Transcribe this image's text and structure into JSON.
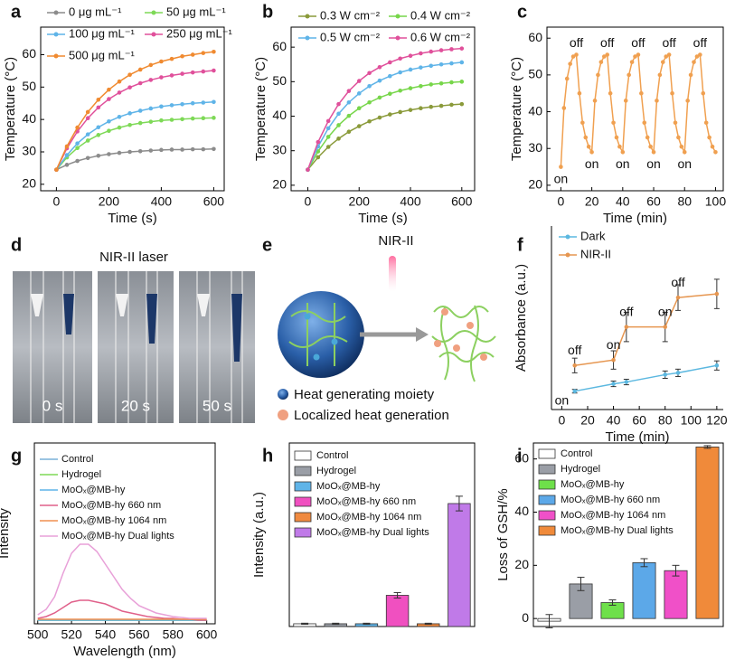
{
  "chart_data": [
    {
      "type": "line",
      "panel": "a",
      "xlabel": "Time (s)",
      "ylabel": "Temperature (°C)",
      "markers": true,
      "x": [
        0,
        40,
        80,
        120,
        160,
        200,
        240,
        280,
        320,
        360,
        400,
        440,
        480,
        520,
        560,
        600
      ],
      "xlim": [
        -60,
        640
      ],
      "xticks": [
        0,
        200,
        400,
        600
      ],
      "ylim": [
        18,
        68.5
      ],
      "yticks": [
        20,
        30,
        40,
        50,
        60
      ],
      "series": [
        {
          "name": "0 μg mL⁻¹",
          "color": "#8c8c8c",
          "values": [
            24.5,
            26.0,
            27.2,
            28.1,
            28.8,
            29.3,
            29.7,
            30.0,
            30.2,
            30.4,
            30.6,
            30.7,
            30.7,
            30.8,
            30.8,
            30.9
          ]
        },
        {
          "name": "50 μg mL⁻¹",
          "color": "#7ed957",
          "values": [
            24.5,
            28.3,
            31.2,
            33.5,
            35.2,
            36.5,
            37.5,
            38.3,
            38.9,
            39.3,
            39.7,
            39.9,
            40.1,
            40.3,
            40.4,
            40.5
          ]
        },
        {
          "name": "100 μg mL⁻¹",
          "color": "#5fb4e8",
          "values": [
            24.5,
            29.0,
            32.6,
            35.4,
            37.6,
            39.4,
            40.8,
            41.9,
            42.7,
            43.4,
            44.0,
            44.4,
            44.7,
            45.0,
            45.2,
            45.4
          ]
        },
        {
          "name": "250 μg mL⁻¹",
          "color": "#e0509b",
          "values": [
            24.5,
            31.1,
            36.3,
            40.4,
            43.7,
            46.3,
            48.3,
            49.9,
            51.2,
            52.2,
            53.0,
            53.6,
            54.1,
            54.5,
            54.8,
            55.1
          ]
        },
        {
          "name": "500 μg mL⁻¹",
          "color": "#f08a30",
          "values": [
            24.5,
            31.7,
            37.5,
            42.3,
            46.1,
            49.2,
            51.7,
            53.8,
            55.4,
            56.8,
            57.9,
            58.7,
            59.5,
            60.0,
            60.5,
            60.9
          ]
        }
      ]
    },
    {
      "type": "line",
      "panel": "b",
      "xlabel": "Time (s)",
      "ylabel": "Temperature (°C)",
      "markers": true,
      "x": [
        0,
        40,
        80,
        120,
        160,
        200,
        240,
        280,
        320,
        360,
        400,
        440,
        480,
        520,
        560,
        600
      ],
      "xlim": [
        -65,
        650
      ],
      "xticks": [
        0,
        200,
        400,
        600
      ],
      "ylim": [
        18.4,
        65.8
      ],
      "yticks": [
        20,
        30,
        40,
        50,
        60
      ],
      "series": [
        {
          "name": "0.3 W cm⁻²",
          "color": "#8a9a3a",
          "values": [
            24.5,
            28.1,
            31.1,
            33.5,
            35.5,
            37.1,
            38.5,
            39.6,
            40.5,
            41.2,
            41.8,
            42.3,
            42.7,
            43.0,
            43.3,
            43.5
          ]
        },
        {
          "name": "0.4 W cm⁻²",
          "color": "#77d64a",
          "values": [
            24.5,
            29.8,
            34.0,
            37.4,
            40.1,
            42.3,
            44.0,
            45.4,
            46.5,
            47.4,
            48.1,
            48.7,
            49.2,
            49.5,
            49.8,
            50.0
          ]
        },
        {
          "name": "0.5 W cm⁻²",
          "color": "#5fb4e8",
          "values": [
            24.5,
            31.2,
            36.5,
            40.7,
            44.0,
            46.6,
            48.7,
            50.3,
            51.6,
            52.7,
            53.5,
            54.1,
            54.6,
            55.0,
            55.3,
            55.6
          ]
        },
        {
          "name": "0.6 W cm⁻²",
          "color": "#e0509b",
          "values": [
            24.5,
            32.5,
            38.6,
            43.5,
            47.3,
            50.2,
            52.5,
            54.2,
            55.6,
            56.7,
            57.5,
            58.2,
            58.7,
            59.1,
            59.4,
            59.6
          ]
        }
      ]
    },
    {
      "type": "line",
      "panel": "c",
      "xlabel": "Time (min)",
      "ylabel": "Temperature (°C)",
      "markers": true,
      "x": [
        0,
        2,
        4,
        6,
        8,
        10,
        12,
        14,
        16,
        18,
        20,
        22,
        24,
        26,
        28,
        30,
        32,
        34,
        36,
        38,
        40,
        42,
        44,
        46,
        48,
        50,
        52,
        54,
        56,
        58,
        60,
        62,
        64,
        66,
        68,
        70,
        72,
        74,
        76,
        78,
        80,
        82,
        84,
        86,
        88,
        90,
        92,
        94,
        96,
        98,
        100
      ],
      "xlim": [
        -9,
        105
      ],
      "xticks": [
        0,
        20,
        40,
        60,
        80,
        100
      ],
      "ylim": [
        18.5,
        63
      ],
      "yticks": [
        20,
        30,
        40,
        50,
        60
      ],
      "series": [
        {
          "color": "#f0a050",
          "values": [
            25,
            41,
            49,
            53,
            55,
            55.5,
            45,
            37,
            33,
            30.5,
            29,
            43,
            50,
            53.5,
            55,
            55.5,
            45,
            37,
            33,
            30.5,
            29,
            43,
            50,
            53.5,
            55,
            55.5,
            45,
            37,
            33,
            30.5,
            29,
            43,
            50,
            53.5,
            55,
            55.5,
            45,
            37,
            33,
            30.5,
            29,
            43,
            50,
            53.5,
            55,
            55.5,
            45,
            37,
            33,
            30.5,
            29
          ]
        }
      ],
      "annotations": [
        {
          "text": "on",
          "x": 0
        },
        {
          "text": "off",
          "x": 10
        },
        {
          "text": "on",
          "x": 20
        },
        {
          "text": "off",
          "x": 30
        },
        {
          "text": "on",
          "x": 40
        },
        {
          "text": "off",
          "x": 50
        },
        {
          "text": "on",
          "x": 60
        },
        {
          "text": "off",
          "x": 70
        },
        {
          "text": "on",
          "x": 80
        },
        {
          "text": "off",
          "x": 90
        }
      ]
    },
    {
      "type": "line",
      "panel": "f",
      "xlabel": "Time (min)",
      "ylabel": "Absorbance (a.u.)",
      "markers": true,
      "x": [
        10,
        40,
        50,
        80,
        90,
        120
      ],
      "xlim": [
        -8,
        125
      ],
      "xticks": [
        0,
        20,
        40,
        60,
        80,
        100,
        120
      ],
      "ylim": [
        0,
        1
      ],
      "series": [
        {
          "name": "Dark",
          "color": "#5cb8e0",
          "values": [
            0.1,
            0.14,
            0.15,
            0.19,
            0.2,
            0.24
          ],
          "errors": [
            0.01,
            0.015,
            0.015,
            0.02,
            0.02,
            0.025
          ]
        },
        {
          "name": "NIR-II",
          "color": "#e69650",
          "values": [
            0.24,
            0.27,
            0.45,
            0.45,
            0.61,
            0.63
          ],
          "errors": [
            0.04,
            0.05,
            0.08,
            0.08,
            0.07,
            0.08
          ]
        }
      ],
      "annotations": [
        {
          "text": "on",
          "x": 0
        },
        {
          "text": "off",
          "x": 10
        },
        {
          "text": "on",
          "x": 40
        },
        {
          "text": "off",
          "x": 50
        },
        {
          "text": "on",
          "x": 80
        },
        {
          "text": "off",
          "x": 90
        }
      ]
    },
    {
      "type": "line",
      "panel": "g",
      "xlabel": "Wavelength (nm)",
      "ylabel": "Intensity",
      "markers": false,
      "x": [
        500,
        505,
        510,
        515,
        520,
        525,
        530,
        535,
        540,
        545,
        550,
        555,
        560,
        565,
        570,
        575,
        580,
        585,
        590,
        595,
        600
      ],
      "xlim": [
        498,
        605
      ],
      "xticks": [
        500,
        520,
        540,
        560,
        580,
        600
      ],
      "ylim": [
        0,
        1
      ],
      "series": [
        {
          "name": "Control",
          "color": "#7ab0d8",
          "values": [
            0.02,
            0.02,
            0.02,
            0.02,
            0.02,
            0.02,
            0.02,
            0.02,
            0.02,
            0.02,
            0.02,
            0.02,
            0.02,
            0.02,
            0.02,
            0.02,
            0.02,
            0.02,
            0.02,
            0.02,
            0.02
          ]
        },
        {
          "name": "Hydrogel",
          "color": "#7ed957",
          "values": [
            0.02,
            0.02,
            0.02,
            0.02,
            0.02,
            0.02,
            0.02,
            0.02,
            0.02,
            0.02,
            0.02,
            0.02,
            0.02,
            0.02,
            0.02,
            0.02,
            0.02,
            0.02,
            0.02,
            0.02,
            0.02
          ]
        },
        {
          "name": "MoOₓ@MB-hy",
          "color": "#5fb4e8",
          "values": [
            0.02,
            0.02,
            0.02,
            0.02,
            0.02,
            0.02,
            0.02,
            0.02,
            0.02,
            0.02,
            0.02,
            0.02,
            0.02,
            0.02,
            0.02,
            0.02,
            0.02,
            0.02,
            0.02,
            0.02,
            0.02
          ]
        },
        {
          "name": "MoOₓ@MB-hy  660 nm",
          "color": "#e0608a",
          "values": [
            0.03,
            0.04,
            0.06,
            0.09,
            0.12,
            0.13,
            0.13,
            0.12,
            0.11,
            0.09,
            0.07,
            0.06,
            0.05,
            0.04,
            0.035,
            0.03,
            0.03,
            0.025,
            0.025,
            0.02,
            0.02
          ]
        },
        {
          "name": "MoOₓ@MB-hy 1064 nm",
          "color": "#f09050",
          "values": [
            0.025,
            0.025,
            0.025,
            0.025,
            0.025,
            0.025,
            0.025,
            0.025,
            0.025,
            0.025,
            0.025,
            0.025,
            0.025,
            0.025,
            0.025,
            0.025,
            0.025,
            0.025,
            0.025,
            0.025,
            0.025
          ]
        },
        {
          "name": "MoOₓ@MB-hy  Dual lights",
          "color": "#e8a0d8",
          "values": [
            0.05,
            0.08,
            0.15,
            0.28,
            0.39,
            0.44,
            0.44,
            0.4,
            0.33,
            0.26,
            0.19,
            0.14,
            0.1,
            0.08,
            0.06,
            0.05,
            0.04,
            0.035,
            0.03,
            0.03,
            0.03
          ]
        }
      ]
    },
    {
      "type": "bar",
      "panel": "h",
      "ylabel": "Intensity (a.u.)",
      "ylim": [
        0,
        1
      ],
      "categories": [
        "Control",
        "Hydrogel",
        "MoOₓ@MB-hy",
        "MoOₓ@MB-hy 660 nm",
        "MoOₓ@MB-hy 1064 nm",
        "MoOₓ@MB-hy Dual lights"
      ],
      "colors": [
        "#ffffff",
        "#9a9ea6",
        "#5fb4e8",
        "#f050c0",
        "#f08a40",
        "#c07ae8"
      ],
      "values": [
        0.015,
        0.015,
        0.015,
        0.17,
        0.015,
        0.67
      ],
      "errors": [
        0.003,
        0.003,
        0.003,
        0.015,
        0.003,
        0.04
      ]
    },
    {
      "type": "bar",
      "panel": "i",
      "ylabel": "Loss of GSH/%",
      "ylim": [
        -3,
        66
      ],
      "yticks": [
        0,
        20,
        40,
        60
      ],
      "categories": [
        "Control",
        "Hydrogel",
        "MoOₓ@MB-hy",
        "MoOₓ@MB-hy 660 nm",
        "MoOₓ@MB-hy 1064 nm",
        "MoOₓ@MB-hy Dual lights"
      ],
      "colors": [
        "#ffffff",
        "#9a9ea6",
        "#6ee04a",
        "#5ca8e8",
        "#f050c8",
        "#f08a3a"
      ],
      "values": [
        -1,
        13,
        6,
        21,
        18,
        64.5
      ],
      "errors": [
        2.5,
        2.5,
        1,
        1.5,
        2,
        0.5
      ]
    }
  ],
  "photo": {
    "panel": "d",
    "title": "NIR-II laser",
    "labels": [
      "0 s",
      "20 s",
      "50 s"
    ]
  },
  "diagram": {
    "panel": "e",
    "label": "NIR-II",
    "legend": [
      "Heat generating moiety",
      "Localized heat generation"
    ]
  }
}
